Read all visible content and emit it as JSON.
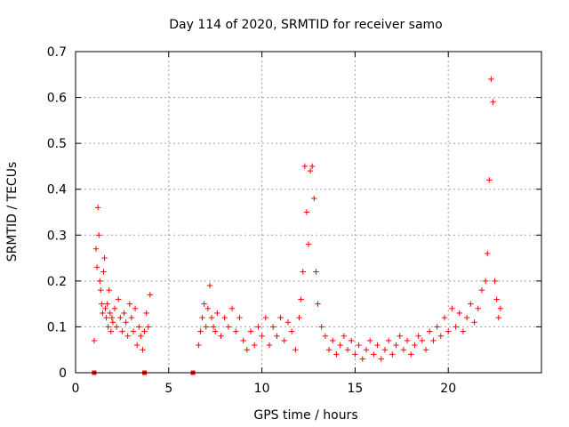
{
  "chart_data": {
    "type": "scatter",
    "title": "Day 114 of 2020, SRMTID for receiver samo",
    "xlabel": "GPS time / hours",
    "ylabel": "SRMTID / TECUs",
    "xlim": [
      0,
      25
    ],
    "ylim": [
      0,
      0.7
    ],
    "xticks": [
      0,
      5,
      10,
      15,
      20
    ],
    "xtick_labels": [
      "0",
      "5",
      "10",
      "15",
      "20"
    ],
    "yticks": [
      0,
      0.1,
      0.2,
      0.3,
      0.4,
      0.5,
      0.6,
      0.7
    ],
    "ytick_labels": [
      "0",
      "0.1",
      "0.2",
      "0.3",
      "0.4",
      "0.5",
      "0.6",
      "0.7"
    ],
    "grid": true,
    "marker": "+",
    "color": "#ff0000",
    "series": [
      {
        "name": "SRMTID",
        "x": [
          1.0,
          1.1,
          1.15,
          1.2,
          1.25,
          1.3,
          1.35,
          1.4,
          1.45,
          1.5,
          1.55,
          1.6,
          1.65,
          1.7,
          1.75,
          1.8,
          1.85,
          1.9,
          1.95,
          2.0,
          2.1,
          2.2,
          2.3,
          2.4,
          2.5,
          2.6,
          2.7,
          2.8,
          2.9,
          3.0,
          3.1,
          3.2,
          3.3,
          3.4,
          3.5,
          3.6,
          3.7,
          3.8,
          3.9,
          4.0,
          6.6,
          6.7,
          6.8,
          6.9,
          7.0,
          7.1,
          7.2,
          7.3,
          7.4,
          7.5,
          7.6,
          7.8,
          8.0,
          8.2,
          8.4,
          8.6,
          8.8,
          9.0,
          9.2,
          9.4,
          9.6,
          9.8,
          10.0,
          10.2,
          10.4,
          10.6,
          10.8,
          11.0,
          11.2,
          11.4,
          11.6,
          11.8,
          12.0,
          12.1,
          12.2,
          12.3,
          12.4,
          12.5,
          12.6,
          12.7,
          12.8,
          12.9,
          13.0,
          13.2,
          13.4,
          13.6,
          13.8,
          14.0,
          14.2,
          14.4,
          14.6,
          14.8,
          15.0,
          15.2,
          15.4,
          15.6,
          15.8,
          16.0,
          16.2,
          16.4,
          16.6,
          16.8,
          17.0,
          17.2,
          17.4,
          17.6,
          17.8,
          18.0,
          18.2,
          18.4,
          18.6,
          18.8,
          19.0,
          19.2,
          19.4,
          19.6,
          19.8,
          20.0,
          20.2,
          20.4,
          20.6,
          20.8,
          21.0,
          21.2,
          21.4,
          21.6,
          21.8,
          22.0,
          22.1,
          22.2,
          22.3,
          22.4,
          22.5,
          22.6,
          22.7,
          22.8
        ],
        "y": [
          0.07,
          0.27,
          0.23,
          0.36,
          0.3,
          0.2,
          0.18,
          0.15,
          0.13,
          0.22,
          0.25,
          0.14,
          0.12,
          0.15,
          0.1,
          0.18,
          0.13,
          0.09,
          0.12,
          0.11,
          0.14,
          0.1,
          0.16,
          0.12,
          0.09,
          0.13,
          0.11,
          0.08,
          0.15,
          0.12,
          0.09,
          0.14,
          0.06,
          0.1,
          0.08,
          0.05,
          0.09,
          0.13,
          0.1,
          0.17,
          0.06,
          0.09,
          0.12,
          0.15,
          0.1,
          0.14,
          0.19,
          0.12,
          0.1,
          0.09,
          0.13,
          0.08,
          0.12,
          0.1,
          0.14,
          0.09,
          0.12,
          0.07,
          0.05,
          0.09,
          0.06,
          0.1,
          0.08,
          0.12,
          0.06,
          0.1,
          0.08,
          0.12,
          0.07,
          0.11,
          0.09,
          0.05,
          0.12,
          0.16,
          0.22,
          0.45,
          0.35,
          0.28,
          0.44,
          0.45,
          0.38,
          0.22,
          0.15,
          0.1,
          0.08,
          0.05,
          0.07,
          0.04,
          0.06,
          0.08,
          0.05,
          0.07,
          0.04,
          0.06,
          0.03,
          0.05,
          0.07,
          0.04,
          0.06,
          0.03,
          0.05,
          0.07,
          0.04,
          0.06,
          0.08,
          0.05,
          0.07,
          0.04,
          0.06,
          0.08,
          0.07,
          0.05,
          0.09,
          0.07,
          0.1,
          0.08,
          0.12,
          0.09,
          0.14,
          0.1,
          0.13,
          0.09,
          0.12,
          0.15,
          0.11,
          0.14,
          0.18,
          0.2,
          0.26,
          0.42,
          0.64,
          0.59,
          0.2,
          0.16,
          0.12,
          0.14
        ],
        "zero_markers_x": [
          1.0,
          3.7,
          6.3
        ]
      }
    ]
  }
}
